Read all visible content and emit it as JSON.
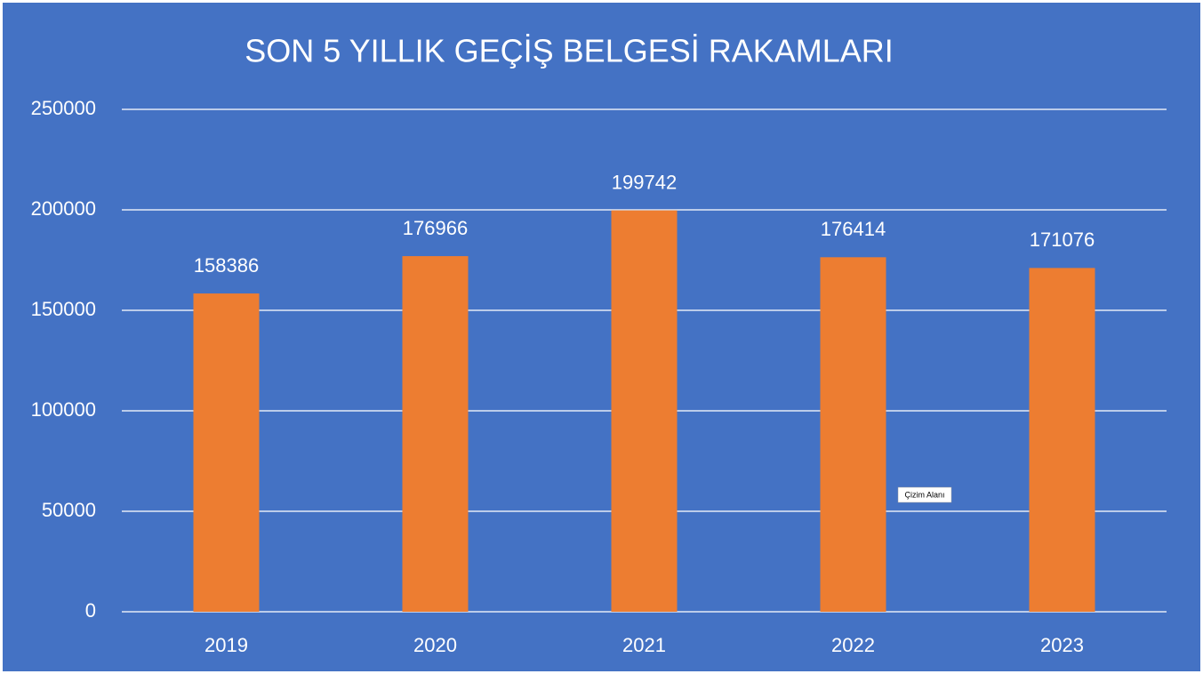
{
  "chart_data": {
    "type": "bar",
    "title": "SON 5 YILLIK GEÇİŞ BELGESİ RAKAMLARI",
    "categories": [
      "2019",
      "2020",
      "2021",
      "2022",
      "2023"
    ],
    "values": [
      158386,
      176966,
      199742,
      176414,
      171076
    ],
    "color": "#ed7d31",
    "background": "#4472c4",
    "ylim": [
      0,
      250000
    ],
    "yticks": [
      0,
      50000,
      100000,
      150000,
      200000,
      250000
    ],
    "grid": true,
    "annotation": "Çizim Alanı"
  }
}
